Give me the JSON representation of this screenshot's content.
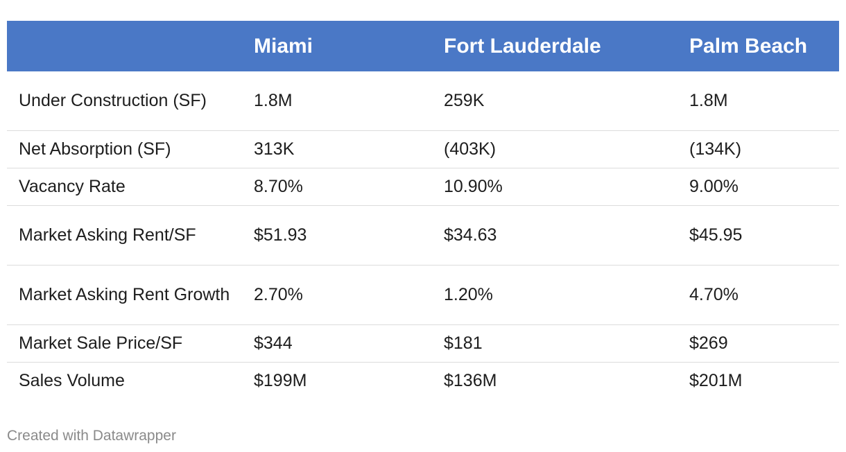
{
  "chart_data": {
    "type": "table",
    "columns": [
      "",
      "Miami",
      "Fort Lauderdale",
      "Palm Beach"
    ],
    "rows": [
      {
        "metric": "Under Construction (SF)",
        "miami": "1.8M",
        "fort_lauderdale": "259K",
        "palm_beach": "1.8M"
      },
      {
        "metric": "Net Absorption (SF)",
        "miami": "313K",
        "fort_lauderdale": "(403K)",
        "palm_beach": "(134K)"
      },
      {
        "metric": "Vacancy Rate",
        "miami": "8.70%",
        "fort_lauderdale": "10.90%",
        "palm_beach": "9.00%"
      },
      {
        "metric": "Market Asking Rent/SF",
        "miami": "$51.93",
        "fort_lauderdale": "$34.63",
        "palm_beach": "$45.95"
      },
      {
        "metric": "Market Asking Rent Growth",
        "miami": "2.70%",
        "fort_lauderdale": "1.20%",
        "palm_beach": "4.70%"
      },
      {
        "metric": "Market Sale Price/SF",
        "miami": "$344",
        "fort_lauderdale": "$181",
        "palm_beach": "$269"
      },
      {
        "metric": "Sales Volume",
        "miami": "$199M",
        "fort_lauderdale": "$136M",
        "palm_beach": "$201M"
      }
    ],
    "header_color": "#4a78c6"
  },
  "footer": {
    "credit": "Created with Datawrapper"
  }
}
